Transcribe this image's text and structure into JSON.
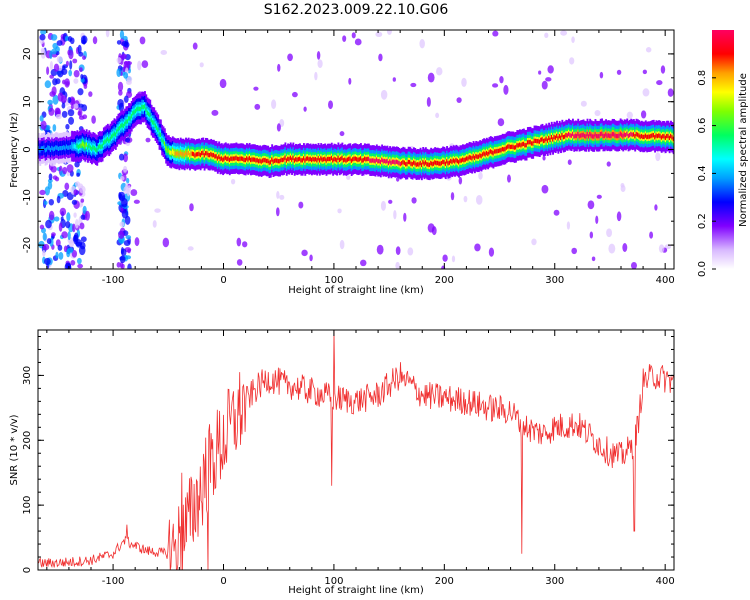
{
  "title": "S162.2023.009.22.10.G06",
  "chart_data": [
    {
      "type": "heatmap",
      "xlabel": "Height of straight line (km)",
      "ylabel": "Frequency (Hz)",
      "xlim": [
        -168,
        408
      ],
      "ylim": [
        -25,
        25
      ],
      "x_ticks": [
        -100,
        0,
        100,
        200,
        300,
        400
      ],
      "y_ticks": [
        -20,
        -10,
        0,
        10,
        20
      ],
      "colorbar": {
        "label": "Normalized spectral amplitude",
        "range": [
          0,
          1
        ],
        "ticks": [
          "0.0",
          "0.2",
          "0.4",
          "0.6",
          "0.8"
        ],
        "colormap": [
          "#e0c8ff",
          "#8000ff",
          "#0000ff",
          "#00a0ff",
          "#00ffff",
          "#00ff60",
          "#80ff00",
          "#ffff00",
          "#ffa000",
          "#ff0000",
          "#ff0060"
        ]
      },
      "ridge": {
        "x": [
          -168,
          -140,
          -128,
          -115,
          -100,
          -88,
          -80,
          -72,
          -65,
          -58,
          -52,
          -45,
          -30,
          -15,
          0,
          20,
          40,
          55,
          70,
          100,
          130,
          160,
          185,
          210,
          230,
          250,
          270,
          290,
          310,
          340,
          370,
          408
        ],
        "freq": [
          0,
          0.5,
          1,
          0,
          3,
          6,
          8,
          9,
          6,
          3,
          0,
          -1,
          -1,
          -1,
          -2,
          -2,
          -2.5,
          -2,
          -2,
          -2,
          -2.2,
          -2.8,
          -3,
          -2.5,
          -1.5,
          0,
          1,
          2,
          3,
          3,
          3,
          2.5
        ],
        "amplitude": [
          0.3,
          0.3,
          0.6,
          0.45,
          0.5,
          0.5,
          0.5,
          0.45,
          0.5,
          0.5,
          0.6,
          0.75,
          0.85,
          0.9,
          0.92,
          0.9,
          0.85,
          0.9,
          0.9,
          0.9,
          0.95,
          0.95,
          0.92,
          0.9,
          0.9,
          0.9,
          0.9,
          0.92,
          0.95,
          1.0,
          0.95,
          0.9
        ]
      }
    },
    {
      "type": "line",
      "xlabel": "Height of straight line (km)",
      "ylabel": "SNR (10 * v/v)",
      "xlim": [
        -168,
        408
      ],
      "ylim": [
        0,
        370
      ],
      "x_ticks": [
        -100,
        0,
        100,
        200,
        300,
        400
      ],
      "y_ticks": [
        0,
        100,
        200,
        300
      ],
      "color": "#f03030",
      "series": [
        {
          "x": [
            -168,
            -140,
            -120,
            -100,
            -90,
            -70,
            -50,
            -40,
            -30,
            -20,
            -10,
            0,
            10,
            20,
            30,
            40,
            60,
            80,
            100,
            120,
            140,
            160,
            180,
            200,
            220,
            240,
            260,
            270,
            280,
            290,
            300,
            320,
            340,
            350,
            360,
            370,
            375,
            380,
            390,
            408
          ],
          "y": [
            10,
            12,
            15,
            25,
            45,
            30,
            25,
            40,
            80,
            130,
            170,
            200,
            230,
            260,
            280,
            295,
            285,
            275,
            265,
            260,
            270,
            300,
            270,
            265,
            260,
            250,
            245,
            225,
            215,
            210,
            220,
            225,
            195,
            180,
            175,
            190,
            220,
            290,
            300,
            290
          ]
        }
      ]
    }
  ]
}
